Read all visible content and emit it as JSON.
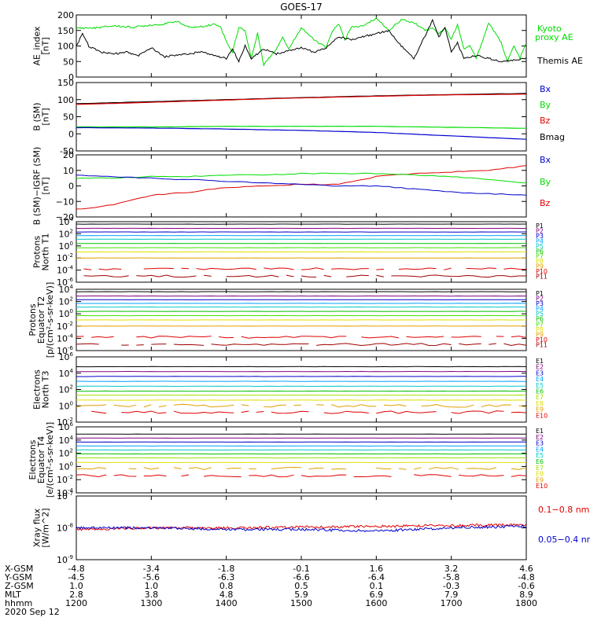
{
  "title": "GOES-17",
  "colors": {
    "black": "#000000",
    "red": "#e00000",
    "green": "#00dd00",
    "blue": "#0000cc",
    "P": [
      "#000000",
      "#800080",
      "#0000cc",
      "#00a0ff",
      "#00c8c8",
      "#00c000",
      "#40e000",
      "#e0e000",
      "#e0a000",
      "#e00000",
      "#a00000"
    ],
    "E": [
      "#000000",
      "#800080",
      "#0000cc",
      "#00a0ff",
      "#00c8c8",
      "#00c000",
      "#a0e000",
      "#e0e000",
      "#e0a000",
      "#e00000",
      "#a00000"
    ]
  },
  "chart_data": [
    {
      "id": "ae",
      "type": "line",
      "ylabel": [
        "AE_index",
        "[nT]"
      ],
      "ylim": [
        0,
        200
      ],
      "yticks": [
        "0",
        "50",
        "100",
        "150",
        "200"
      ],
      "legend": [
        {
          "text": "Kyoto",
          "color": "#00dd00"
        },
        {
          "text": "proxy AE",
          "color": "#00dd00"
        },
        {
          "text": "Themis AE",
          "color": "#000000"
        }
      ],
      "series": [
        {
          "name": "Kyoto proxy AE",
          "color": "#00dd00",
          "x": [
            1200,
            1215,
            1230,
            1245,
            1300,
            1310,
            1320,
            1330,
            1340,
            1350,
            1355,
            1400,
            1405,
            1410,
            1415,
            1420,
            1425,
            1430,
            1440,
            1445,
            1450,
            1500,
            1510,
            1520,
            1525,
            1530,
            1535,
            1540,
            1550,
            1600,
            1610,
            1620,
            1630,
            1640,
            1645,
            1650,
            1655,
            1700,
            1705,
            1710,
            1715,
            1720,
            1730,
            1740,
            1745,
            1750,
            1755,
            1800
          ],
          "y": [
            158,
            158,
            165,
            160,
            168,
            170,
            180,
            160,
            162,
            170,
            165,
            115,
            80,
            160,
            150,
            60,
            140,
            40,
            90,
            130,
            90,
            160,
            120,
            95,
            150,
            170,
            120,
            160,
            165,
            190,
            150,
            185,
            175,
            150,
            160,
            140,
            160,
            120,
            170,
            90,
            100,
            60,
            175,
            110,
            50,
            100,
            60,
            110
          ]
        },
        {
          "name": "Themis AE",
          "color": "#000000",
          "x": [
            1200,
            1205,
            1210,
            1220,
            1230,
            1240,
            1250,
            1300,
            1310,
            1320,
            1330,
            1340,
            1350,
            1400,
            1405,
            1410,
            1415,
            1420,
            1430,
            1440,
            1450,
            1500,
            1510,
            1520,
            1530,
            1540,
            1550,
            1600,
            1610,
            1620,
            1630,
            1640,
            1645,
            1650,
            1655,
            1700,
            1705,
            1710,
            1720,
            1730,
            1740,
            1750,
            1800
          ],
          "y": [
            100,
            140,
            100,
            80,
            75,
            80,
            70,
            95,
            65,
            70,
            75,
            80,
            70,
            60,
            90,
            50,
            100,
            60,
            90,
            75,
            85,
            95,
            80,
            95,
            130,
            120,
            130,
            140,
            150,
            100,
            60,
            140,
            185,
            130,
            160,
            80,
            110,
            60,
            70,
            60,
            50,
            55,
            60
          ]
        }
      ]
    },
    {
      "id": "bsm",
      "type": "line",
      "ylabel": [
        "B (SM)",
        "[nT]"
      ],
      "ylim": [
        -50,
        150
      ],
      "yticks": [
        "-50",
        "0",
        "50",
        "100",
        "150"
      ],
      "legend": [
        {
          "text": "Bx",
          "color": "#0000cc"
        },
        {
          "text": "By",
          "color": "#00dd00"
        },
        {
          "text": "Bz",
          "color": "#e00000"
        },
        {
          "text": "Bmag",
          "color": "#000000"
        }
      ],
      "series": [
        {
          "name": "Bmag",
          "color": "#000000",
          "x": [
            1200,
            1300,
            1400,
            1500,
            1600,
            1700,
            1800
          ],
          "y": [
            88,
            94,
            100,
            106,
            111,
            115,
            118
          ]
        },
        {
          "name": "Bz",
          "color": "#e00000",
          "x": [
            1200,
            1300,
            1400,
            1500,
            1600,
            1700,
            1800
          ],
          "y": [
            86,
            92,
            99,
            105,
            110,
            114,
            116
          ]
        },
        {
          "name": "By",
          "color": "#00dd00",
          "x": [
            1200,
            1300,
            1400,
            1500,
            1600,
            1700,
            1800
          ],
          "y": [
            20,
            20,
            22,
            22,
            22,
            19,
            16
          ]
        },
        {
          "name": "Bx",
          "color": "#0000cc",
          "x": [
            1200,
            1300,
            1400,
            1500,
            1600,
            1700,
            1800
          ],
          "y": [
            18,
            17,
            14,
            10,
            4,
            -6,
            -16
          ]
        }
      ]
    },
    {
      "id": "bigrf",
      "type": "line",
      "ylabel": [
        "B (SM)−IGRF (SM)",
        "[nT]"
      ],
      "ylim": [
        -20,
        20
      ],
      "yticks": [
        "−20",
        "−10",
        "0",
        "10",
        "20"
      ],
      "legend": [
        {
          "text": "Bx",
          "color": "#0000cc"
        },
        {
          "text": "By",
          "color": "#00dd00"
        },
        {
          "text": "Bz",
          "color": "#e00000"
        }
      ],
      "series": [
        {
          "name": "Bz",
          "color": "#e00000",
          "x": [
            1200,
            1215,
            1230,
            1245,
            1300,
            1330,
            1400,
            1430,
            1500,
            1530,
            1600,
            1630,
            1700,
            1730,
            1800
          ],
          "y": [
            -15,
            -14,
            -12,
            -9,
            -6,
            -4,
            -1,
            0,
            1,
            1,
            6,
            8,
            9,
            10,
            13
          ]
        },
        {
          "name": "By",
          "color": "#00dd00",
          "x": [
            1200,
            1230,
            1300,
            1330,
            1400,
            1430,
            1500,
            1530,
            1600,
            1630,
            1700,
            1730,
            1800
          ],
          "y": [
            5,
            5,
            6,
            6,
            7,
            7,
            8,
            8,
            8,
            7,
            6,
            4,
            2
          ]
        },
        {
          "name": "Bx",
          "color": "#0000cc",
          "x": [
            1200,
            1230,
            1300,
            1330,
            1400,
            1430,
            1500,
            1530,
            1600,
            1630,
            1700,
            1730,
            1800
          ],
          "y": [
            7,
            6,
            5,
            4,
            3,
            2,
            1,
            0,
            0,
            -2,
            -4,
            -5,
            -6
          ]
        }
      ]
    },
    {
      "id": "pn",
      "type": "line",
      "log": true,
      "ylabel": [
        "Protons",
        "North T1"
      ],
      "ylim_exp": [
        -6,
        4
      ],
      "yticks": [
        {
          "e": 4,
          "t": "4"
        },
        {
          "e": 2,
          "t": "2"
        },
        {
          "e": 0,
          "t": "0"
        },
        {
          "e": -2,
          "t": "-2"
        },
        {
          "e": -4,
          "t": "-4"
        },
        {
          "e": -6,
          "t": "-6"
        }
      ],
      "channels": [
        "P1",
        "P2",
        "P3",
        "P4",
        "P5",
        "P6",
        "P7",
        "P8",
        "P9",
        "P10",
        "P11"
      ],
      "levels": [
        3.6,
        2.9,
        2.3,
        1.7,
        1.1,
        0.4,
        -0.3,
        -1.0,
        -2.0,
        -3.8,
        -5.0
      ],
      "dashed_from": 9
    },
    {
      "id": "pe",
      "type": "line",
      "log": true,
      "ylabel": [
        "Protons",
        "Equator T2",
        "[p/(cm²-s-sr-keV)]"
      ],
      "ylim_exp": [
        -6,
        4
      ],
      "yticks": [
        {
          "e": 4,
          "t": "4"
        },
        {
          "e": 2,
          "t": "2"
        },
        {
          "e": 0,
          "t": "0"
        },
        {
          "e": -2,
          "t": "-2"
        },
        {
          "e": -4,
          "t": "-4"
        },
        {
          "e": -6,
          "t": "-6"
        }
      ],
      "channels": [
        "P1",
        "P2",
        "P3",
        "P4",
        "P5",
        "P6",
        "P7",
        "P8",
        "P9",
        "P10",
        "P11"
      ],
      "levels": [
        3.6,
        2.9,
        2.3,
        1.7,
        1.1,
        0.4,
        -0.3,
        -1.0,
        -2.0,
        -3.8,
        -5.0
      ],
      "dashed_from": 9
    },
    {
      "id": "en",
      "type": "line",
      "log": true,
      "ylabel": [
        "Electrons",
        "North T3"
      ],
      "ylim_exp": [
        -2,
        6
      ],
      "yticks": [
        {
          "e": 6,
          "t": "6"
        },
        {
          "e": 4,
          "t": "4"
        },
        {
          "e": 2,
          "t": "2"
        },
        {
          "e": 0,
          "t": "0"
        },
        {
          "e": -2,
          "t": "-2"
        }
      ],
      "channels": [
        "E1",
        "E2",
        "E3",
        "E4",
        "E5",
        "E6",
        "E7",
        "E8",
        "E9",
        "E10"
      ],
      "levels": [
        4.8,
        4.2,
        3.6,
        3.0,
        2.4,
        1.8,
        1.3,
        0.7,
        0.0,
        -0.8
      ],
      "dashed_from": 8
    },
    {
      "id": "ee",
      "type": "line",
      "log": true,
      "ylabel": [
        "Electrons",
        "Equator T4",
        "[e/(cm²-s-sr-keV)]"
      ],
      "ylim_exp": [
        -4,
        6
      ],
      "yticks": [
        {
          "e": 6,
          "t": "6"
        },
        {
          "e": 4,
          "t": "4"
        },
        {
          "e": 2,
          "t": "2"
        },
        {
          "e": 0,
          "t": "0"
        },
        {
          "e": -2,
          "t": "-2"
        },
        {
          "e": -4,
          "t": "-4"
        }
      ],
      "channels": [
        "E1",
        "E2",
        "E3",
        "E4",
        "E5",
        "E6",
        "E7",
        "E8",
        "E9",
        "E10"
      ],
      "levels": [
        4.9,
        4.3,
        3.7,
        3.1,
        2.5,
        1.9,
        1.3,
        0.6,
        -0.3,
        -1.4
      ],
      "dashed_from": 8
    },
    {
      "id": "xray",
      "type": "line",
      "log": true,
      "ylabel": [
        "Xray flux",
        "[W/m^2]"
      ],
      "ylim_exp": [
        -9,
        -7
      ],
      "yticks": [
        {
          "e": -7,
          "t": "-7"
        },
        {
          "e": -8,
          "t": "-8"
        },
        {
          "e": -9,
          "t": "-9"
        }
      ],
      "legend": [
        {
          "text": "0.1−0.8 nm",
          "color": "#e00000"
        },
        {
          "text": "0.05−0.4 nm",
          "color": "#0000cc"
        }
      ],
      "series": [
        {
          "name": "0.1−0.8 nm",
          "color": "#e00000",
          "x": [
            1200,
            1300,
            1400,
            1500,
            1600,
            1700,
            1800
          ],
          "y": [
            -8.05,
            -8.0,
            -8.0,
            -7.98,
            -7.95,
            -7.93,
            -7.9
          ]
        },
        {
          "name": "0.05−0.4 nm",
          "color": "#0000cc",
          "x": [
            1200,
            1300,
            1400,
            1500,
            1600,
            1700,
            1800
          ],
          "y": [
            -8.0,
            -8.0,
            -8.05,
            -8.05,
            -8.1,
            -8.0,
            -7.95
          ]
        }
      ]
    }
  ],
  "xaxis": {
    "ticks": [
      1200,
      1300,
      1400,
      1500,
      1600,
      1700,
      1800
    ],
    "rows": [
      {
        "label": "X-GSM",
        "values": [
          "-4.8",
          "-3.4",
          "-1.8",
          "-0.1",
          "1.6",
          "3.2",
          "4.6"
        ]
      },
      {
        "label": "Y-GSM",
        "values": [
          "-4.5",
          "-5.6",
          "-6.3",
          "-6.6",
          "-6.4",
          "-5.8",
          "-4.8"
        ]
      },
      {
        "label": "Z-GSM",
        "values": [
          "1.0",
          "1.0",
          "0.8",
          "0.5",
          "0.1",
          "-0.3",
          "-0.6"
        ]
      },
      {
        "label": "MLT",
        "values": [
          "2.8",
          "3.8",
          "4.8",
          "5.9",
          "6.9",
          "7.9",
          "8.9"
        ]
      },
      {
        "label": "hhmm",
        "values": [
          "1200",
          "1300",
          "1400",
          "1500",
          "1600",
          "1700",
          "1800"
        ]
      }
    ],
    "date": "2020 Sep 12"
  }
}
